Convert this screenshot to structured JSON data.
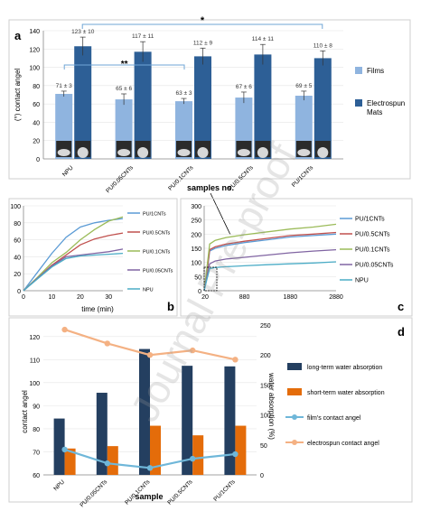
{
  "watermark": "Journal Pre-proof",
  "chart_data": [
    {
      "panel": "a",
      "type": "bar",
      "ylabel": "(°) contact angel",
      "xlabel": "samples no.",
      "ylim": [
        0,
        140
      ],
      "yticks": [
        0,
        20,
        40,
        60,
        80,
        100,
        120,
        140
      ],
      "categories": [
        "NPU",
        "PU/0.05CNTs",
        "PU/0.1CNTs",
        "PU/0.5CNTs",
        "PU/1CNTs"
      ],
      "series": [
        {
          "name": "Films",
          "color": "#8fb4df",
          "values": [
            71,
            65,
            63,
            67,
            69
          ],
          "errors": [
            3,
            6,
            3,
            6,
            5
          ],
          "labels": [
            "71 ± 3",
            "65 ± 6",
            "63 ± 3",
            "67 ± 6",
            "69 ± 5"
          ]
        },
        {
          "name": "Electrospun Mats",
          "color": "#2d5f96",
          "values": [
            123,
            117,
            112,
            114,
            110
          ],
          "errors": [
            10,
            11,
            9,
            11,
            8
          ],
          "labels": [
            "123 ± 10",
            "117 ± 11",
            "112 ± 9",
            "114 ± 11",
            "110 ± 8"
          ]
        }
      ],
      "annotations": [
        "*",
        "**"
      ],
      "legend": "right"
    },
    {
      "panel": "b",
      "type": "line",
      "xlabel": "time (min)",
      "xlim": [
        0,
        35
      ],
      "ylim": [
        0,
        100
      ],
      "xticks": [
        0,
        10,
        20,
        30
      ],
      "yticks": [
        0,
        20,
        40,
        60,
        80,
        100
      ],
      "series": [
        {
          "name": "PU/1CNTs",
          "color": "#5b9bd5",
          "x": [
            0,
            5,
            10,
            15,
            20,
            25,
            30,
            35
          ],
          "y": [
            0,
            22,
            44,
            63,
            75,
            80,
            83,
            85
          ]
        },
        {
          "name": "PU/0.5CNTs",
          "color": "#c0504d",
          "x": [
            0,
            5,
            10,
            15,
            20,
            25,
            30,
            35
          ],
          "y": [
            0,
            15,
            30,
            42,
            54,
            61,
            65,
            68
          ]
        },
        {
          "name": "PU/0.1CNTs",
          "color": "#9bbb59",
          "x": [
            0,
            5,
            10,
            15,
            20,
            25,
            30,
            35
          ],
          "y": [
            0,
            16,
            33,
            45,
            60,
            72,
            82,
            87
          ]
        },
        {
          "name": "PU/0.05CNTs",
          "color": "#8064a2",
          "x": [
            0,
            5,
            10,
            15,
            20,
            25,
            30,
            35
          ],
          "y": [
            0,
            15,
            29,
            40,
            42,
            44,
            46,
            49
          ]
        },
        {
          "name": "NPU",
          "color": "#4bacc6",
          "x": [
            0,
            5,
            10,
            15,
            20,
            25,
            30,
            35
          ],
          "y": [
            0,
            14,
            28,
            38,
            41,
            42,
            43,
            44
          ]
        }
      ],
      "legend": "right"
    },
    {
      "panel": "c",
      "type": "line",
      "xlim": [
        0,
        2880
      ],
      "ylim": [
        0,
        300
      ],
      "xticks": [
        20,
        880,
        1880,
        2880
      ],
      "yticks": [
        0,
        50,
        100,
        150,
        200,
        250,
        300
      ],
      "series": [
        {
          "name": "PU/1CNTs",
          "color": "#5b9bd5",
          "x": [
            0,
            60,
            120,
            240,
            480,
            880,
            1380,
            1880,
            2380,
            2880
          ],
          "y": [
            0,
            60,
            140,
            150,
            160,
            170,
            180,
            190,
            195,
            200
          ]
        },
        {
          "name": "PU/0.5CNTs",
          "color": "#c0504d",
          "x": [
            0,
            60,
            120,
            240,
            480,
            880,
            1380,
            1880,
            2380,
            2880
          ],
          "y": [
            0,
            65,
            145,
            155,
            165,
            175,
            185,
            195,
            200,
            206
          ]
        },
        {
          "name": "PU/0.1CNTs",
          "color": "#9bbb59",
          "x": [
            0,
            60,
            120,
            240,
            480,
            880,
            1380,
            1880,
            2380,
            2880
          ],
          "y": [
            0,
            80,
            165,
            178,
            188,
            198,
            208,
            218,
            225,
            235
          ]
        },
        {
          "name": "PU/0.05CNTs",
          "color": "#8064a2",
          "x": [
            0,
            60,
            120,
            240,
            480,
            880,
            1380,
            1880,
            2380,
            2880
          ],
          "y": [
            0,
            50,
            95,
            105,
            112,
            118,
            126,
            134,
            140,
            145
          ]
        },
        {
          "name": "NPU",
          "color": "#4bacc6",
          "x": [
            0,
            60,
            120,
            240,
            480,
            880,
            1380,
            1880,
            2380,
            2880
          ],
          "y": [
            0,
            40,
            78,
            82,
            85,
            88,
            92,
            95,
            98,
            102
          ]
        }
      ],
      "legend": "right"
    },
    {
      "panel": "d",
      "type": "bar",
      "xlabel": "sample",
      "ylabel": "contact angel",
      "y2label": "water absorption (%)",
      "ylim": [
        60,
        125
      ],
      "yticks": [
        60,
        70,
        80,
        90,
        100,
        110,
        120
      ],
      "y2lim": [
        0,
        250
      ],
      "y2ticks": [
        0,
        50,
        100,
        150,
        200,
        250
      ],
      "categories": [
        "NPU",
        "PU/0.05CNTs",
        "PU/0.1CNTs",
        "PU/0.5CNTs",
        "PU/1CNTs"
      ],
      "series": [
        {
          "name": "long-term water absorption",
          "color": "#243f60",
          "axis": "right",
          "kind": "bar",
          "values": [
            94,
            137,
            210,
            182,
            181
          ]
        },
        {
          "name": "short-term water absorption",
          "color": "#e46c0a",
          "axis": "right",
          "kind": "bar",
          "values": [
            44,
            48,
            82,
            66,
            82
          ]
        },
        {
          "name": "film's contact angel",
          "color": "#6fb7d9",
          "axis": "left",
          "kind": "line",
          "values": [
            71,
            65,
            63,
            67,
            69
          ]
        },
        {
          "name": "electrospun contact angel",
          "color": "#f4b183",
          "axis": "left",
          "kind": "line",
          "values": [
            123,
            117,
            112,
            114,
            110
          ]
        }
      ],
      "legend": "right"
    }
  ]
}
